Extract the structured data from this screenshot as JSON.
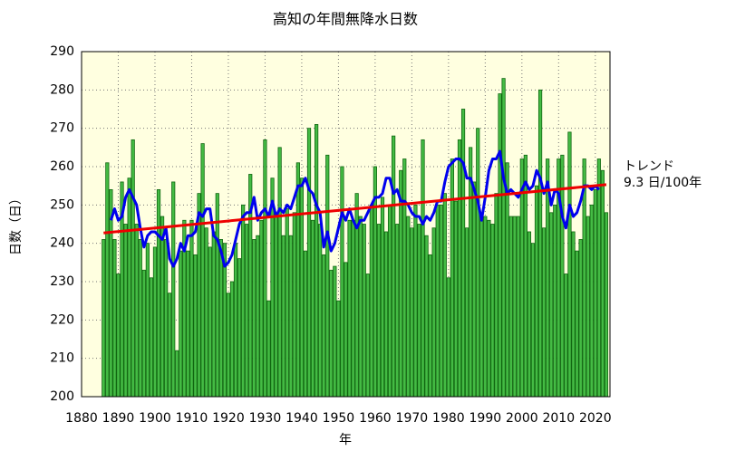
{
  "chart_data": {
    "type": "bar",
    "title": "高知の年間無降水日数",
    "x_label": "年",
    "y_label": "日数（日）",
    "x": [
      1886,
      1887,
      1888,
      1889,
      1890,
      1891,
      1892,
      1893,
      1894,
      1895,
      1896,
      1897,
      1898,
      1899,
      1900,
      1901,
      1902,
      1903,
      1904,
      1905,
      1906,
      1907,
      1908,
      1909,
      1910,
      1911,
      1912,
      1913,
      1914,
      1915,
      1916,
      1917,
      1918,
      1919,
      1920,
      1921,
      1922,
      1923,
      1924,
      1925,
      1926,
      1927,
      1928,
      1929,
      1930,
      1931,
      1932,
      1933,
      1934,
      1935,
      1936,
      1937,
      1938,
      1939,
      1940,
      1941,
      1942,
      1943,
      1944,
      1945,
      1946,
      1947,
      1948,
      1949,
      1950,
      1951,
      1952,
      1953,
      1954,
      1955,
      1956,
      1957,
      1958,
      1959,
      1960,
      1961,
      1962,
      1963,
      1964,
      1965,
      1966,
      1967,
      1968,
      1969,
      1970,
      1971,
      1972,
      1973,
      1974,
      1975,
      1976,
      1977,
      1978,
      1979,
      1980,
      1981,
      1982,
      1983,
      1984,
      1985,
      1986,
      1987,
      1988,
      1989,
      1990,
      1991,
      1992,
      1993,
      1994,
      1995,
      1996,
      1997,
      1998,
      1999,
      2000,
      2001,
      2002,
      2003,
      2004,
      2005,
      2006,
      2007,
      2008,
      2009,
      2010,
      2011,
      2012,
      2013,
      2014,
      2015,
      2016,
      2017,
      2018,
      2019,
      2020,
      2021,
      2022,
      2023
    ],
    "values": [
      241,
      261,
      254,
      241,
      232,
      256,
      245,
      257,
      267,
      245,
      241,
      233,
      240,
      231,
      239,
      254,
      247,
      241,
      227,
      256,
      212,
      238,
      246,
      238,
      246,
      237,
      253,
      266,
      244,
      239,
      243,
      253,
      241,
      240,
      227,
      230,
      240,
      236,
      250,
      245,
      258,
      241,
      242,
      246,
      267,
      225,
      257,
      247,
      265,
      242,
      249,
      242,
      248,
      261,
      257,
      238,
      270,
      246,
      271,
      245,
      237,
      263,
      233,
      234,
      225,
      260,
      235,
      246,
      246,
      253,
      247,
      245,
      232,
      250,
      260,
      245,
      252,
      243,
      250,
      268,
      245,
      259,
      262,
      247,
      244,
      250,
      245,
      267,
      242,
      237,
      244,
      250,
      250,
      253,
      231,
      262,
      251,
      267,
      275,
      244,
      265,
      256,
      270,
      247,
      247,
      246,
      245,
      253,
      279,
      283,
      261,
      247,
      247,
      247,
      262,
      263,
      243,
      240,
      255,
      280,
      244,
      262,
      248,
      250,
      262,
      263,
      232,
      269,
      243,
      238,
      241,
      262,
      247,
      250,
      254,
      262,
      259,
      248
    ],
    "color": "#44bb44",
    "moving_average": {
      "color": "#0000ee",
      "values": [
        null,
        null,
        246,
        249,
        246,
        247,
        252,
        254,
        252,
        250,
        244,
        239,
        242,
        243,
        243,
        242,
        241,
        244,
        236,
        234,
        236,
        240,
        238,
        242,
        242,
        243,
        248,
        247,
        249,
        249,
        242,
        241,
        238,
        234,
        235,
        237,
        241,
        245,
        247,
        248,
        248,
        252,
        246,
        248,
        249,
        247,
        251,
        247,
        249,
        248,
        250,
        249,
        252,
        255,
        255,
        257,
        254,
        253,
        250,
        248,
        239,
        243,
        238,
        240,
        244,
        248,
        246,
        249,
        246,
        244,
        246,
        246,
        248,
        250,
        252,
        252,
        253,
        257,
        257,
        253,
        254,
        251,
        251,
        250,
        248,
        247,
        247,
        245,
        247,
        246,
        248,
        251,
        251,
        256,
        260,
        261,
        262,
        262,
        261,
        257,
        257,
        254,
        251,
        246,
        252,
        259,
        262,
        262,
        264,
        257,
        253,
        254,
        253,
        252,
        254,
        256,
        254,
        255,
        259,
        257,
        253,
        256,
        250,
        254,
        253,
        247,
        244,
        250,
        247,
        248,
        251,
        255,
        255,
        254,
        255,
        254,
        null,
        null
      ]
    },
    "trend": {
      "color": "#ee0000",
      "x": [
        1886,
        2023
      ],
      "values": [
        242.7,
        255.3
      ],
      "label": "トレンド",
      "rate_label": "9.3 日/100年"
    },
    "xlim": [
      1880,
      2024
    ],
    "ylim": [
      200,
      290
    ],
    "xticks": [
      1880,
      1890,
      1900,
      1910,
      1920,
      1930,
      1940,
      1950,
      1960,
      1970,
      1980,
      1990,
      2000,
      2010,
      2020
    ],
    "yticks": [
      200,
      210,
      220,
      230,
      240,
      250,
      260,
      270,
      280,
      290
    ],
    "grid": true
  }
}
